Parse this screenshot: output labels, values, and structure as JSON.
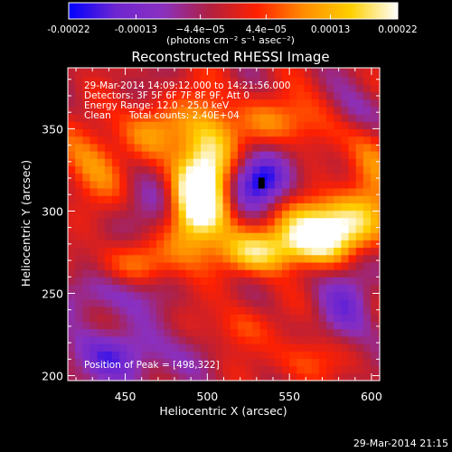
{
  "chart_data": {
    "type": "heatmap",
    "title": "Reconstructed RHESSI Image",
    "xlabel": "Heliocentric X (arcsec)",
    "ylabel": "Heliocentric Y (arcsec)",
    "xlim": [
      415,
      605
    ],
    "ylim": [
      197,
      387
    ],
    "x_ticks": [
      450,
      500,
      550,
      600
    ],
    "y_ticks": [
      200,
      250,
      300,
      350
    ],
    "colorbar": {
      "unit_label": "(photons cm⁻² s⁻¹ asec⁻²)",
      "range": [
        -0.00022,
        0.00022
      ],
      "tick_values": [
        -0.00022,
        -0.00013,
        -4.4e-05,
        4.4e-05,
        0.00013,
        0.00022
      ],
      "tick_labels": [
        "-0.00022",
        "-0.00013",
        "−4.4e−05",
        "4.4e−05",
        "0.00013",
        "0.00022"
      ],
      "colors": [
        "#0000ff",
        "#6e26d0",
        "#8a30c0",
        "#b02040",
        "#ff2000",
        "#ff8c00",
        "#ffd000",
        "#ffffff"
      ]
    },
    "info_lines": [
      "29-Mar-2014 14:09:12.000 to 14:21:56.000",
      "Detectors: 3F 5F 6F 7F 8F 9F, Att 0",
      "Energy Range: 12.0 - 25.0 keV",
      "Clean      Total counts: 2.40E+04"
    ],
    "peak_label": "Position of Peak = [498,322]",
    "peak_position": [
      498,
      322
    ],
    "min_marker": [
      533,
      317
    ],
    "timestamp": "29-Mar-2014 21:15",
    "value_range": [
      -0.00022,
      0.00022
    ],
    "features": [
      {
        "kind": "negative-well",
        "x": 533,
        "y": 318,
        "sx": 13,
        "sy": 12,
        "amp": -0.0002
      },
      {
        "kind": "negative-well",
        "x": 445,
        "y": 212,
        "sx": 28,
        "sy": 12,
        "amp": -0.00012
      },
      {
        "kind": "negative-well",
        "x": 585,
        "y": 245,
        "sx": 12,
        "sy": 20,
        "amp": -0.0001
      },
      {
        "kind": "negative-well",
        "x": 470,
        "y": 300,
        "sx": 14,
        "sy": 14,
        "amp": -7e-05
      },
      {
        "kind": "negative-well",
        "x": 440,
        "y": 250,
        "sx": 22,
        "sy": 10,
        "amp": -9e-05
      },
      {
        "kind": "negative-well",
        "x": 590,
        "y": 360,
        "sx": 14,
        "sy": 10,
        "amp": -8e-05
      },
      {
        "kind": "positive-band",
        "x": 500,
        "y": 325,
        "sx": 12,
        "sy": 28,
        "amp": 0.00022
      },
      {
        "kind": "positive-band",
        "x": 490,
        "y": 300,
        "sx": 12,
        "sy": 20,
        "amp": 0.00018
      },
      {
        "kind": "positive-band",
        "x": 580,
        "y": 293,
        "sx": 22,
        "sy": 13,
        "amp": 0.00021
      },
      {
        "kind": "positive-band",
        "x": 560,
        "y": 282,
        "sx": 18,
        "sy": 11,
        "amp": 0.00016
      },
      {
        "kind": "positive-band",
        "x": 530,
        "y": 275,
        "sx": 18,
        "sy": 9,
        "amp": 0.00014
      },
      {
        "kind": "positive-band",
        "x": 550,
        "y": 355,
        "sx": 22,
        "sy": 11,
        "amp": 0.00012
      },
      {
        "kind": "positive-band",
        "x": 470,
        "y": 350,
        "sx": 16,
        "sy": 12,
        "amp": 0.0001
      },
      {
        "kind": "positive-band",
        "x": 430,
        "y": 330,
        "sx": 14,
        "sy": 18,
        "amp": 0.00011
      },
      {
        "kind": "positive-band",
        "x": 455,
        "y": 268,
        "sx": 18,
        "sy": 10,
        "amp": 0.0001
      },
      {
        "kind": "positive-band",
        "x": 600,
        "y": 330,
        "sx": 10,
        "sy": 16,
        "amp": 0.00011
      },
      {
        "kind": "positive-band",
        "x": 520,
        "y": 230,
        "sx": 12,
        "sy": 10,
        "amp": 8e-05
      },
      {
        "kind": "positive-band",
        "x": 560,
        "y": 210,
        "sx": 14,
        "sy": 10,
        "amp": 9e-05
      }
    ]
  }
}
